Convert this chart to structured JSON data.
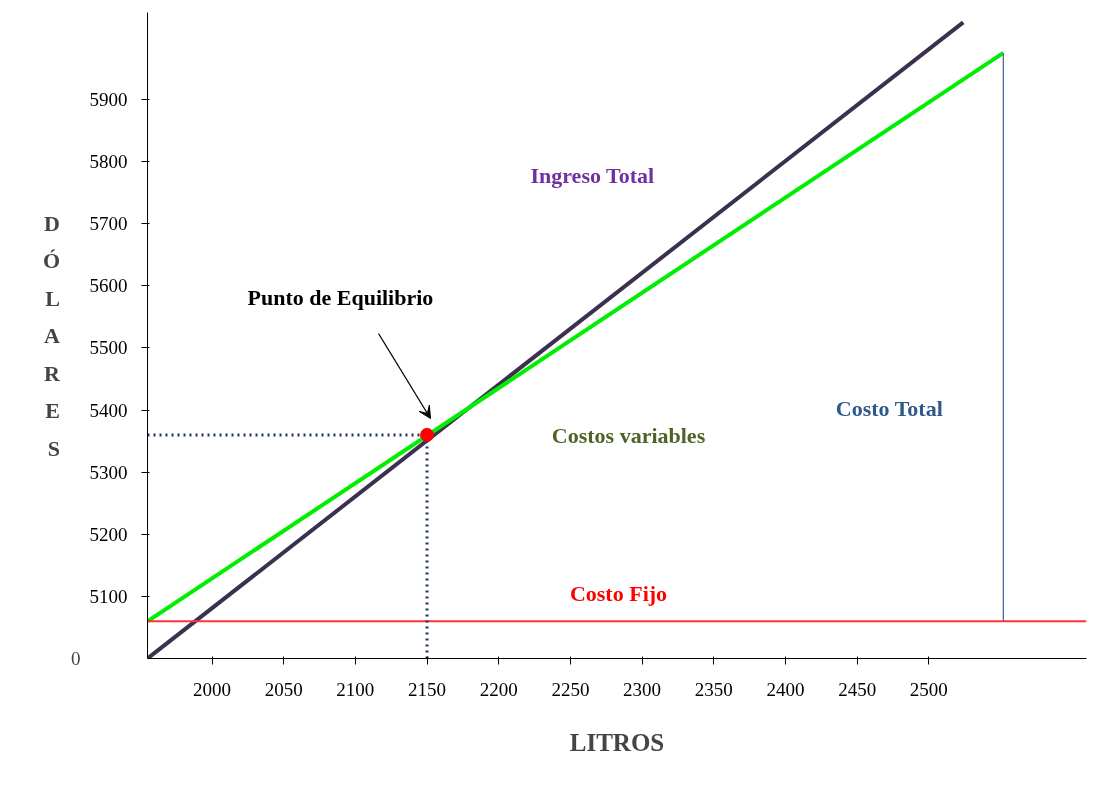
{
  "chart_data": {
    "type": "line",
    "xlabel": "LITROS",
    "ylabel": "DÓLARES",
    "xlim": [
      1955,
      2610
    ],
    "ylim": [
      5000,
      6040
    ],
    "xticks": [
      2000,
      2050,
      2100,
      2150,
      2200,
      2250,
      2300,
      2350,
      2400,
      2450,
      2500
    ],
    "yticks": [
      5100,
      5200,
      5300,
      5400,
      5500,
      5600,
      5700,
      5800,
      5900
    ],
    "grid": false,
    "series": [
      {
        "color": "#3b3050",
        "x": [
          1955,
          2524
        ],
        "values": [
          5000,
          6024
        ],
        "line_style": "solid",
        "marker": "none"
      },
      {
        "color": "#00ee00",
        "x": [
          1955,
          2552
        ],
        "values": [
          5060,
          5975
        ],
        "line_style": "solid",
        "marker": "none"
      },
      {
        "color": "#ff3333",
        "x": [
          1955,
          2610
        ],
        "values": [
          5060,
          5060
        ],
        "line_style": "solid",
        "marker": "none"
      },
      {
        "color": "#4a6a9a",
        "x": [
          2552,
          2552
        ],
        "values": [
          5060,
          5975
        ],
        "line_style": "solid",
        "marker": "none"
      },
      {
        "color": "#1f3a5f",
        "x": [
          1955,
          2150
        ],
        "values": [
          5360,
          5360
        ],
        "line_style": "dotted",
        "marker": "none"
      },
      {
        "color": "#1f3a5f",
        "x": [
          2150,
          2150
        ],
        "values": [
          5000,
          5360
        ],
        "line_style": "dotted",
        "marker": "none"
      },
      {
        "type": "scatter",
        "color": "#ff0000",
        "x": [
          2150
        ],
        "values": [
          5360
        ],
        "marker": "circle"
      }
    ],
    "annotations": [
      "Punto de Equilibrio",
      "Ingreso Total",
      "Costos variables",
      "Costo Total",
      "Costo Fijo",
      "0"
    ]
  }
}
